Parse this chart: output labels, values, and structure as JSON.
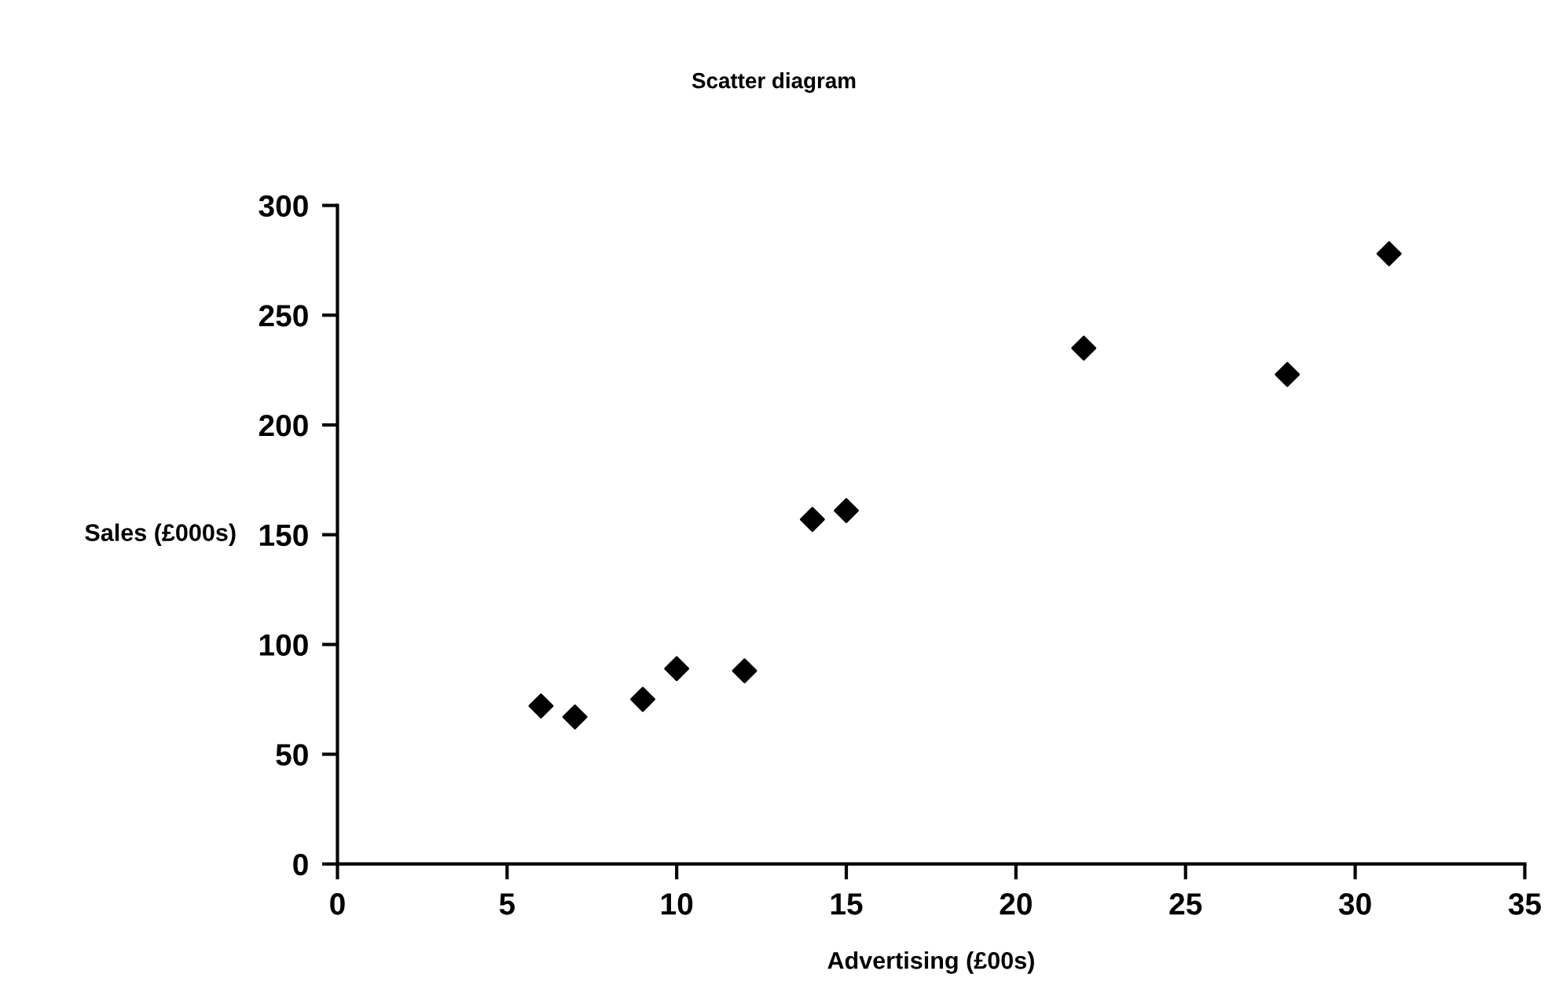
{
  "chart_data": {
    "type": "scatter",
    "title": "Scatter diagram",
    "xlabel": "Advertising (£00s)",
    "ylabel": "Sales (£000s)",
    "x": [
      6,
      7,
      9,
      10,
      12,
      14,
      15,
      22,
      28,
      31
    ],
    "values": [
      72,
      67,
      75,
      89,
      88,
      157,
      161,
      235,
      223,
      278
    ],
    "color": "#000000",
    "marker": "diamond",
    "grid": false,
    "legend": false,
    "xlim": [
      0,
      35
    ],
    "xticks": [
      0,
      5,
      10,
      15,
      20,
      25,
      30,
      35
    ],
    "ylim": [
      0,
      300
    ],
    "yticks": [
      0,
      50,
      100,
      150,
      200,
      250,
      300
    ]
  }
}
